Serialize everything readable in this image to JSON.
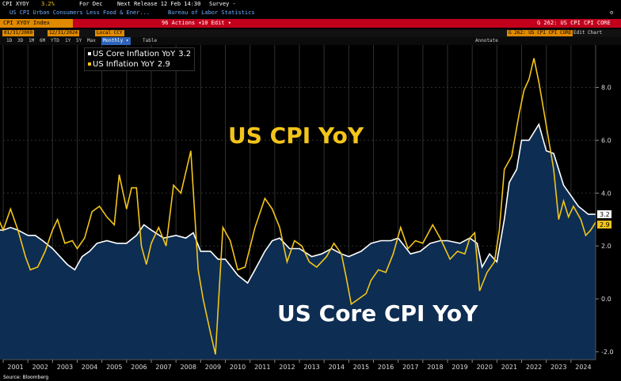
{
  "header": {
    "ticker": "CPI XYOY",
    "value": "3.2%",
    "period": "For Dec",
    "next_release": "Next Release 12 Feb 14:30",
    "survey": "Survey -",
    "description": "US CPI Urban Consumers Less Food & Ener...",
    "source": "Bureau of Labor Statistics"
  },
  "toolbar": {
    "index_label": "CPI XYOY Index",
    "actions": "96 Actions ▾",
    "edit": "10 Edit ▾",
    "chart_code": "G 262: US CPI CPI CORE"
  },
  "controls": {
    "start_date": "01/31/2000",
    "end_date": "12/31/2024",
    "currency": "Local CCY",
    "periods": [
      "1D",
      "3D",
      "1M",
      "6M",
      "YTD",
      "1Y",
      "5Y",
      "Max"
    ],
    "frequency": "Monthly ▾",
    "table_label": "Table",
    "edit_chart": "Edit Chart"
  },
  "sub_toolbar": {
    "annotate": "Annotate"
  },
  "footer": {
    "source": "Source: Bloomberg"
  },
  "legend": {
    "items": [
      {
        "label": "US Core Inflation YoY",
        "value": "3.2",
        "color": "#ffffff"
      },
      {
        "label": "US Inflation YoY",
        "value": "2.9",
        "color": "#f3c51a"
      }
    ]
  },
  "annotations": {
    "cpi_title": "US CPI YoY",
    "core_title": "US Core CPI YoY"
  },
  "colors": {
    "background": "#000000",
    "core_fill": "#0d2d52",
    "core_line": "#ffffff",
    "cpi_line": "#f3c51a",
    "grid": "#2f2f2f",
    "axis_text": "#dddddd"
  },
  "chart_data": {
    "type": "line",
    "title": "",
    "xlabel": "",
    "ylabel": "",
    "x_start": 2001,
    "x_end": 2025,
    "categories": [
      "2001",
      "2002",
      "2003",
      "2004",
      "2005",
      "2006",
      "2007",
      "2008",
      "2009",
      "2010",
      "2011",
      "2012",
      "2013",
      "2014",
      "2015",
      "2016",
      "2017",
      "2018",
      "2019",
      "2020",
      "2021",
      "2022",
      "2023",
      "2024"
    ],
    "ylim": [
      -2.3,
      9.6
    ],
    "yticks": [
      "-2.0",
      "0.0",
      "2.0",
      "4.0",
      "6.0",
      "8.0"
    ],
    "last_labels": {
      "core": "3.2",
      "cpi": "2.9"
    },
    "series": [
      {
        "name": "US Core Inflation YoY",
        "style": "area",
        "points": [
          [
            2000.0,
            2.6
          ],
          [
            2000.5,
            2.6
          ],
          [
            2001.0,
            2.6
          ],
          [
            2001.3,
            2.7
          ],
          [
            2001.6,
            2.6
          ],
          [
            2002.0,
            2.4
          ],
          [
            2002.3,
            2.4
          ],
          [
            2002.6,
            2.2
          ],
          [
            2003.0,
            1.9
          ],
          [
            2003.3,
            1.6
          ],
          [
            2003.6,
            1.3
          ],
          [
            2003.9,
            1.1
          ],
          [
            2004.2,
            1.6
          ],
          [
            2004.5,
            1.8
          ],
          [
            2004.8,
            2.1
          ],
          [
            2005.2,
            2.2
          ],
          [
            2005.6,
            2.1
          ],
          [
            2006.0,
            2.1
          ],
          [
            2006.4,
            2.4
          ],
          [
            2006.7,
            2.8
          ],
          [
            2007.0,
            2.6
          ],
          [
            2007.5,
            2.3
          ],
          [
            2008.0,
            2.4
          ],
          [
            2008.4,
            2.3
          ],
          [
            2008.7,
            2.5
          ],
          [
            2009.0,
            1.8
          ],
          [
            2009.4,
            1.8
          ],
          [
            2009.7,
            1.5
          ],
          [
            2010.0,
            1.5
          ],
          [
            2010.5,
            0.9
          ],
          [
            2010.9,
            0.6
          ],
          [
            2011.2,
            1.1
          ],
          [
            2011.6,
            1.8
          ],
          [
            2011.9,
            2.2
          ],
          [
            2012.2,
            2.3
          ],
          [
            2012.6,
            1.9
          ],
          [
            2013.0,
            1.9
          ],
          [
            2013.5,
            1.6
          ],
          [
            2013.9,
            1.7
          ],
          [
            2014.3,
            1.9
          ],
          [
            2014.7,
            1.7
          ],
          [
            2015.0,
            1.6
          ],
          [
            2015.5,
            1.8
          ],
          [
            2015.9,
            2.1
          ],
          [
            2016.3,
            2.2
          ],
          [
            2016.7,
            2.2
          ],
          [
            2017.0,
            2.3
          ],
          [
            2017.5,
            1.7
          ],
          [
            2017.9,
            1.8
          ],
          [
            2018.3,
            2.1
          ],
          [
            2018.7,
            2.2
          ],
          [
            2019.0,
            2.2
          ],
          [
            2019.5,
            2.1
          ],
          [
            2019.9,
            2.3
          ],
          [
            2020.2,
            2.1
          ],
          [
            2020.4,
            1.2
          ],
          [
            2020.7,
            1.7
          ],
          [
            2021.0,
            1.4
          ],
          [
            2021.3,
            3.0
          ],
          [
            2021.5,
            4.4
          ],
          [
            2021.8,
            4.9
          ],
          [
            2022.0,
            6.0
          ],
          [
            2022.3,
            6.0
          ],
          [
            2022.7,
            6.6
          ],
          [
            2023.0,
            5.6
          ],
          [
            2023.3,
            5.5
          ],
          [
            2023.7,
            4.3
          ],
          [
            2024.0,
            3.9
          ],
          [
            2024.3,
            3.5
          ],
          [
            2024.7,
            3.2
          ],
          [
            2025.0,
            3.2
          ]
        ]
      },
      {
        "name": "US Inflation YoY",
        "style": "line",
        "points": [
          [
            2000.0,
            3.7
          ],
          [
            2000.3,
            3.3
          ],
          [
            2000.6,
            3.5
          ],
          [
            2001.0,
            2.6
          ],
          [
            2001.3,
            3.4
          ],
          [
            2001.6,
            2.6
          ],
          [
            2001.9,
            1.6
          ],
          [
            2002.1,
            1.1
          ],
          [
            2002.4,
            1.2
          ],
          [
            2002.7,
            1.8
          ],
          [
            2003.0,
            2.6
          ],
          [
            2003.2,
            3.0
          ],
          [
            2003.5,
            2.1
          ],
          [
            2003.8,
            2.2
          ],
          [
            2004.0,
            1.9
          ],
          [
            2004.3,
            2.3
          ],
          [
            2004.6,
            3.3
          ],
          [
            2004.9,
            3.5
          ],
          [
            2005.2,
            3.1
          ],
          [
            2005.5,
            2.8
          ],
          [
            2005.7,
            4.7
          ],
          [
            2006.0,
            3.4
          ],
          [
            2006.2,
            4.2
          ],
          [
            2006.4,
            4.2
          ],
          [
            2006.6,
            2.0
          ],
          [
            2006.8,
            1.3
          ],
          [
            2007.0,
            2.1
          ],
          [
            2007.3,
            2.7
          ],
          [
            2007.6,
            2.0
          ],
          [
            2007.9,
            4.3
          ],
          [
            2008.2,
            4.0
          ],
          [
            2008.6,
            5.6
          ],
          [
            2008.9,
            1.1
          ],
          [
            2009.1,
            0.0
          ],
          [
            2009.4,
            -1.3
          ],
          [
            2009.6,
            -2.1
          ],
          [
            2009.9,
            2.7
          ],
          [
            2010.2,
            2.2
          ],
          [
            2010.5,
            1.1
          ],
          [
            2010.8,
            1.2
          ],
          [
            2011.2,
            2.7
          ],
          [
            2011.6,
            3.8
          ],
          [
            2011.9,
            3.4
          ],
          [
            2012.2,
            2.7
          ],
          [
            2012.5,
            1.4
          ],
          [
            2012.8,
            2.2
          ],
          [
            2013.1,
            2.0
          ],
          [
            2013.4,
            1.4
          ],
          [
            2013.7,
            1.2
          ],
          [
            2014.1,
            1.6
          ],
          [
            2014.4,
            2.1
          ],
          [
            2014.7,
            1.7
          ],
          [
            2014.9,
            0.8
          ],
          [
            2015.1,
            -0.2
          ],
          [
            2015.4,
            0.0
          ],
          [
            2015.7,
            0.2
          ],
          [
            2015.9,
            0.7
          ],
          [
            2016.2,
            1.1
          ],
          [
            2016.5,
            1.0
          ],
          [
            2016.8,
            1.7
          ],
          [
            2017.1,
            2.7
          ],
          [
            2017.4,
            1.9
          ],
          [
            2017.7,
            2.2
          ],
          [
            2018.0,
            2.1
          ],
          [
            2018.4,
            2.8
          ],
          [
            2018.7,
            2.3
          ],
          [
            2018.9,
            1.9
          ],
          [
            2019.1,
            1.5
          ],
          [
            2019.4,
            1.8
          ],
          [
            2019.7,
            1.7
          ],
          [
            2019.9,
            2.3
          ],
          [
            2020.1,
            2.5
          ],
          [
            2020.3,
            0.3
          ],
          [
            2020.6,
            1.0
          ],
          [
            2020.9,
            1.4
          ],
          [
            2021.1,
            2.6
          ],
          [
            2021.3,
            4.9
          ],
          [
            2021.6,
            5.4
          ],
          [
            2021.9,
            7.0
          ],
          [
            2022.1,
            7.9
          ],
          [
            2022.3,
            8.3
          ],
          [
            2022.5,
            9.1
          ],
          [
            2022.7,
            8.2
          ],
          [
            2022.9,
            7.1
          ],
          [
            2023.1,
            6.0
          ],
          [
            2023.3,
            4.9
          ],
          [
            2023.5,
            3.0
          ],
          [
            2023.7,
            3.7
          ],
          [
            2023.9,
            3.1
          ],
          [
            2024.1,
            3.5
          ],
          [
            2024.4,
            3.0
          ],
          [
            2024.6,
            2.4
          ],
          [
            2024.8,
            2.6
          ],
          [
            2025.0,
            2.9
          ]
        ]
      }
    ]
  }
}
